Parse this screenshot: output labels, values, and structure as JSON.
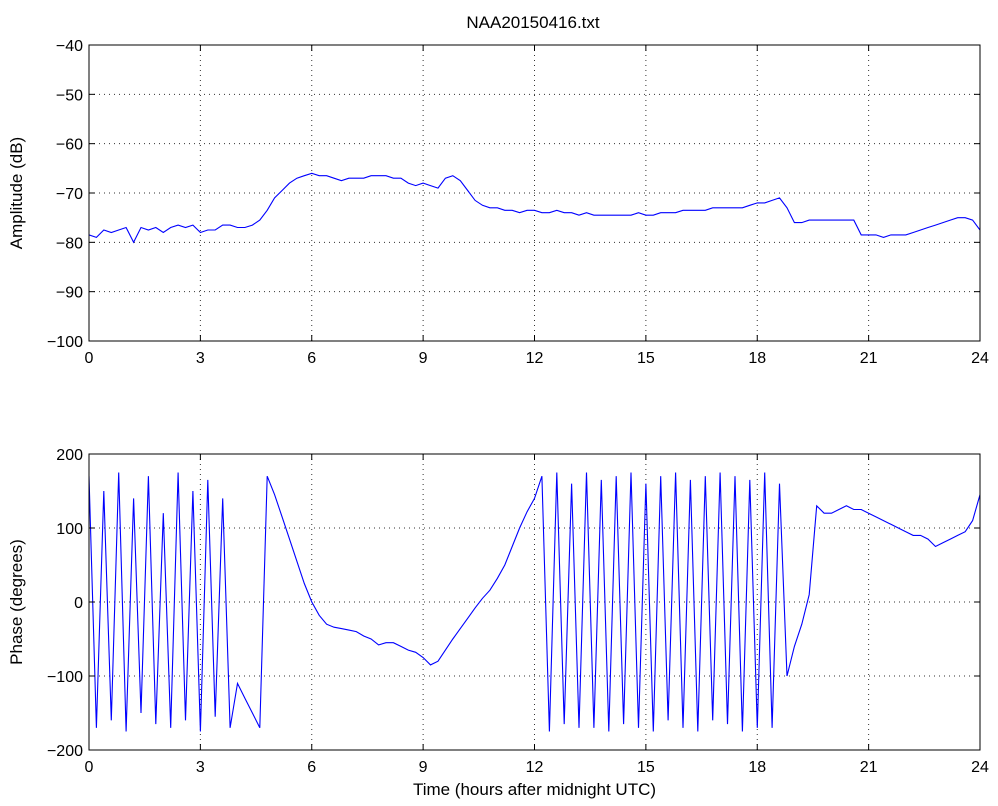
{
  "figure": {
    "title": "NAA20150416.txt"
  },
  "chart_data": [
    {
      "type": "line",
      "title": "NAA20150416.txt",
      "xlabel": "",
      "ylabel": "Amplitude (dB)",
      "xlim": [
        0,
        24
      ],
      "ylim": [
        -100,
        -40
      ],
      "xticks": [
        0,
        3,
        6,
        9,
        12,
        15,
        18,
        21,
        24
      ],
      "yticks": [
        -100,
        -90,
        -80,
        -70,
        -60,
        -50,
        -40
      ],
      "grid": true,
      "color": "#0000ff",
      "series": [
        {
          "x": [
            0,
            0.2,
            0.4,
            0.6,
            0.8,
            1,
            1.2,
            1.4,
            1.6,
            1.8,
            2,
            2.2,
            2.4,
            2.6,
            2.8,
            3,
            3.2,
            3.4,
            3.6,
            3.8,
            4,
            4.2,
            4.4,
            4.6,
            4.8,
            5,
            5.2,
            5.4,
            5.6,
            5.8,
            6,
            6.2,
            6.4,
            6.6,
            6.8,
            7,
            7.2,
            7.4,
            7.6,
            7.8,
            8,
            8.2,
            8.4,
            8.6,
            8.8,
            9,
            9.2,
            9.4,
            9.6,
            9.8,
            10,
            10.2,
            10.4,
            10.6,
            10.8,
            11,
            11.2,
            11.4,
            11.6,
            11.8,
            12,
            12.2,
            12.4,
            12.6,
            12.8,
            13,
            13.2,
            13.4,
            13.6,
            13.8,
            14,
            14.2,
            14.4,
            14.6,
            14.8,
            15,
            15.2,
            15.4,
            15.6,
            15.8,
            16,
            16.2,
            16.4,
            16.6,
            16.8,
            17,
            17.2,
            17.4,
            17.6,
            17.8,
            18,
            18.2,
            18.4,
            18.6,
            18.8,
            19,
            19.2,
            19.4,
            19.6,
            19.8,
            20,
            20.2,
            20.4,
            20.6,
            20.8,
            21,
            21.2,
            21.4,
            21.6,
            21.8,
            22,
            22.2,
            22.4,
            22.6,
            22.8,
            23,
            23.2,
            23.4,
            23.6,
            23.8,
            24
          ],
          "values": [
            -78.5,
            -79,
            -77.5,
            -78,
            -77.5,
            -77,
            -80,
            -77,
            -77.5,
            -77,
            -78,
            -77,
            -76.5,
            -77,
            -76.5,
            -78,
            -77.5,
            -77.5,
            -76.5,
            -76.5,
            -77,
            -77,
            -76.5,
            -75.5,
            -73.5,
            -71,
            -69.5,
            -68,
            -67,
            -66.5,
            -66,
            -66.5,
            -66.5,
            -67,
            -67.5,
            -67,
            -67,
            -67,
            -66.5,
            -66.5,
            -66.5,
            -67,
            -67,
            -68,
            -68.5,
            -68,
            -68.5,
            -69,
            -67,
            -66.5,
            -67.5,
            -69.5,
            -71.5,
            -72.5,
            -73,
            -73,
            -73.5,
            -73.5,
            -74,
            -73.5,
            -73.5,
            -74,
            -74,
            -73.5,
            -74,
            -74,
            -74.5,
            -74,
            -74.5,
            -74.5,
            -74.5,
            -74.5,
            -74.5,
            -74.5,
            -74,
            -74.5,
            -74.5,
            -74,
            -74,
            -74,
            -73.5,
            -73.5,
            -73.5,
            -73.5,
            -73,
            -73,
            -73,
            -73,
            -73,
            -72.5,
            -72,
            -72,
            -71.5,
            -71,
            -73,
            -76,
            -76,
            -75.5,
            -75.5,
            -75.5,
            -75.5,
            -75.5,
            -75.5,
            -75.5,
            -78.5,
            -78.5,
            -78.5,
            -79,
            -78.5,
            -78.5,
            -78.5,
            -78,
            -77.5,
            -77,
            -76.5,
            -76,
            -75.5,
            -75,
            -75,
            -75.5,
            -77.5
          ]
        }
      ]
    },
    {
      "type": "line",
      "title": "",
      "xlabel": "Time (hours after midnight UTC)",
      "ylabel": "Phase (degrees)",
      "xlim": [
        0,
        24
      ],
      "ylim": [
        -200,
        200
      ],
      "xticks": [
        0,
        3,
        6,
        9,
        12,
        15,
        18,
        21,
        24
      ],
      "yticks": [
        -200,
        -100,
        0,
        100,
        200
      ],
      "grid": true,
      "color": "#0000ff",
      "series": [
        {
          "x": [
            0,
            0.2,
            0.4,
            0.6,
            0.8,
            1,
            1.2,
            1.4,
            1.6,
            1.8,
            2,
            2.2,
            2.4,
            2.6,
            2.8,
            3,
            3.2,
            3.4,
            3.6,
            3.8,
            4,
            4.2,
            4.4,
            4.6,
            4.8,
            5,
            5.2,
            5.4,
            5.6,
            5.8,
            6,
            6.2,
            6.4,
            6.6,
            6.8,
            7,
            7.2,
            7.4,
            7.6,
            7.8,
            8,
            8.2,
            8.4,
            8.6,
            8.8,
            9,
            9.2,
            9.4,
            9.6,
            9.8,
            10,
            10.2,
            10.4,
            10.6,
            10.8,
            11,
            11.2,
            11.4,
            11.6,
            11.8,
            12,
            12.2,
            12.4,
            12.6,
            12.8,
            13,
            13.2,
            13.4,
            13.6,
            13.8,
            14,
            14.2,
            14.4,
            14.6,
            14.8,
            15,
            15.2,
            15.4,
            15.6,
            15.8,
            16,
            16.2,
            16.4,
            16.6,
            16.8,
            17,
            17.2,
            17.4,
            17.6,
            17.8,
            18,
            18.2,
            18.4,
            18.6,
            18.8,
            19,
            19.2,
            19.4,
            19.6,
            19.8,
            20,
            20.2,
            20.4,
            20.6,
            20.8,
            21,
            21.2,
            21.4,
            21.6,
            21.8,
            22,
            22.2,
            22.4,
            22.6,
            22.8,
            23,
            23.2,
            23.4,
            23.6,
            23.8,
            24
          ],
          "values": [
            170,
            -170,
            150,
            -160,
            175,
            -175,
            140,
            -150,
            170,
            -165,
            120,
            -170,
            175,
            -160,
            150,
            -175,
            165,
            -155,
            140,
            -170,
            -110,
            -130,
            -150,
            -170,
            170,
            145,
            115,
            85,
            55,
            25,
            0,
            -18,
            -30,
            -34,
            -36,
            -38,
            -40,
            -46,
            -50,
            -58,
            -55,
            -55,
            -60,
            -65,
            -68,
            -75,
            -85,
            -80,
            -65,
            -50,
            -36,
            -22,
            -8,
            5,
            16,
            32,
            50,
            75,
            100,
            122,
            140,
            170,
            -175,
            175,
            -165,
            160,
            -170,
            175,
            -170,
            165,
            -175,
            170,
            -165,
            175,
            -170,
            160,
            -175,
            170,
            -160,
            175,
            -170,
            165,
            -175,
            170,
            -160,
            175,
            -165,
            170,
            -175,
            165,
            -170,
            175,
            -170,
            160,
            -100,
            -60,
            -30,
            10,
            130,
            120,
            120,
            125,
            130,
            125,
            125,
            120,
            115,
            110,
            105,
            100,
            95,
            90,
            90,
            85,
            75,
            80,
            85,
            90,
            95,
            110,
            145
          ]
        }
      ]
    }
  ]
}
